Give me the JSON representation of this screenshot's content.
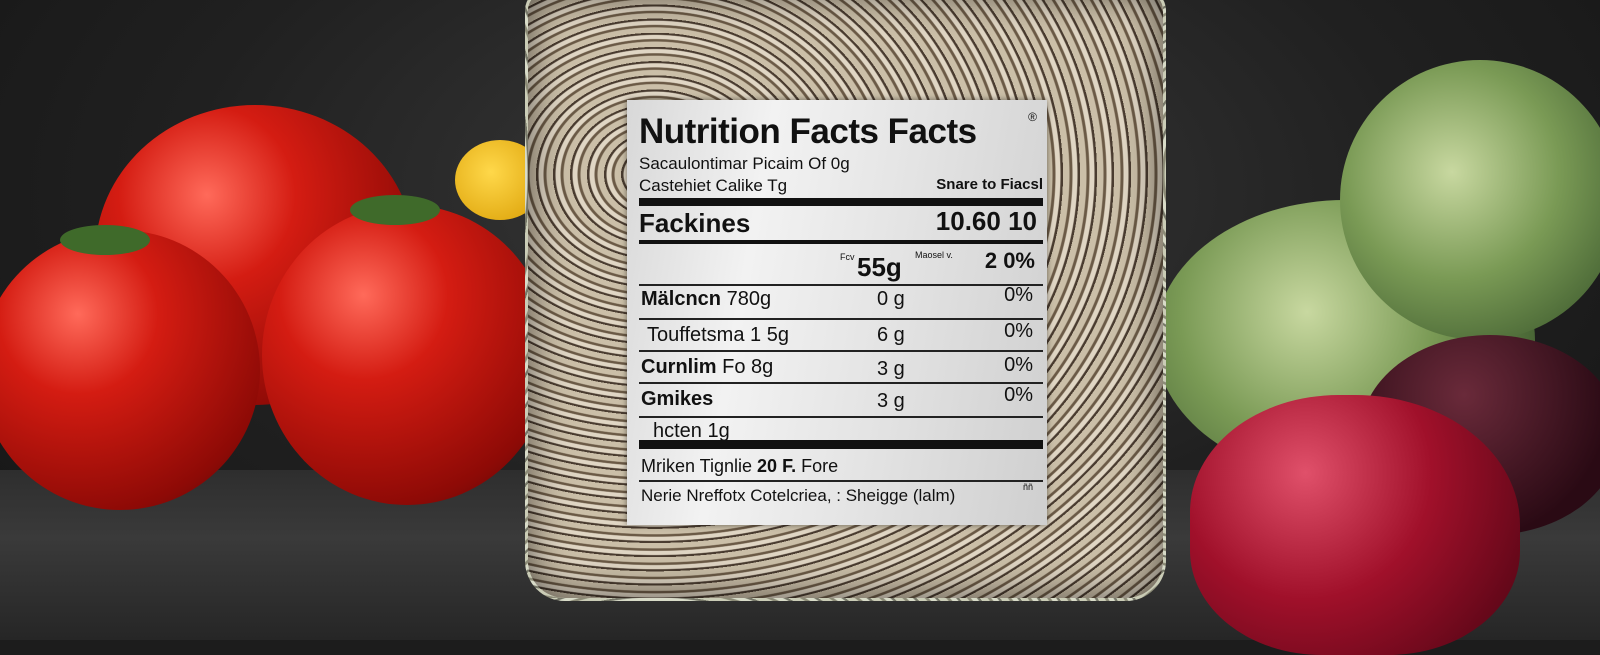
{
  "label": {
    "title": "Nutrition Facts Facts",
    "registered": "®",
    "subtitle_1": "Sacaulontimar Picaim Of 0g",
    "subtitle_2": "Castehiet Calike Tg",
    "subtitle_right": "Snare to Fiacsl",
    "main_row": {
      "name": "Fackines",
      "value": "10.60 10"
    },
    "serving_row": {
      "prefix": "Fcv",
      "amount": "55g",
      "mid": "Maosel v.",
      "percent": "2 0%"
    },
    "rows": [
      {
        "name_bold": "Mälcncn",
        "name_rest": " 780g",
        "amount": "0 g",
        "percent": "0%"
      },
      {
        "name_bold": "",
        "name_rest": "Touffetsma 1 5g",
        "amount": "6 g",
        "percent": "0%"
      },
      {
        "name_bold": "Curnlim",
        "name_rest": " Fo 8g",
        "amount": "3 g",
        "percent": "0%"
      },
      {
        "name_bold": "Gmikes",
        "name_rest": "",
        "amount": "3 g",
        "percent": "0%"
      },
      {
        "name_bold": "",
        "name_rest": "hcten 1g",
        "amount": "",
        "percent": ""
      }
    ],
    "footer_1": {
      "a": "Mriken Tignlie ",
      "b": "20 F.",
      "c": " Fore"
    },
    "footer_2": "Nerie Nreffotx Cotelcriea, : Sheigge (lalm)",
    "footer_corner": "ññ"
  }
}
